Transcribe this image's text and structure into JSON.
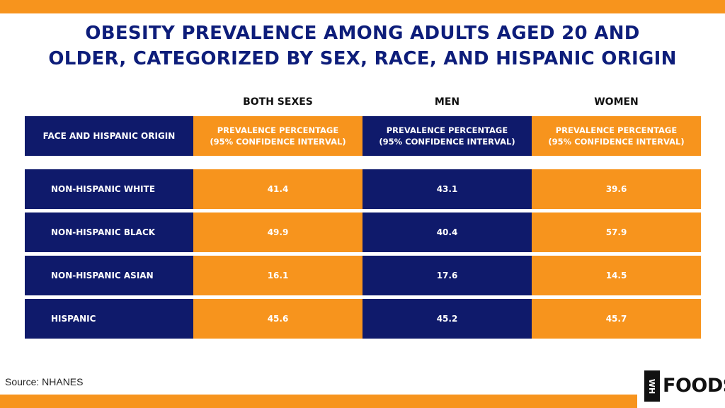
{
  "colors": {
    "navy": "#0f1a6b",
    "orange": "#f7941d",
    "title": "#0d1d7a"
  },
  "title_lines": [
    "OBESITY PREVALENCE AMONG ADULTS AGED 20 AND",
    "OLDER, CATEGORIZED BY SEX, RACE, AND HISPANIC ORIGIN"
  ],
  "chart_data": {
    "type": "table",
    "group_headers": [
      "BOTH SEXES",
      "MEN",
      "WOMEN"
    ],
    "header_row": {
      "first": "FACE AND HISPANIC ORIGIN",
      "cells": [
        [
          "PREVALENCE PERCENTAGE",
          "(95% CONFIDENCE INTERVAL)"
        ],
        [
          "PREVALENCE PERCENTAGE",
          "(95% CONFIDENCE INTERVAL)"
        ],
        [
          "PREVALENCE PERCENTAGE",
          "(95% CONFIDENCE INTERVAL)"
        ]
      ]
    },
    "rows": [
      {
        "label": "NON-HISPANIC WHITE",
        "values": [
          "41.4",
          "43.1",
          "39.6"
        ]
      },
      {
        "label": "NON-HISPANIC BLACK",
        "values": [
          "49.9",
          "40.4",
          "57.9"
        ]
      },
      {
        "label": "NON-HISPANIC ASIAN",
        "values": [
          "16.1",
          "17.6",
          "14.5"
        ]
      },
      {
        "label": "HISPANIC",
        "values": [
          "45.6",
          "45.2",
          "45.7"
        ]
      }
    ]
  },
  "source": "Source: NHANES",
  "logo": {
    "box_text": "WH",
    "text": "FOODS"
  }
}
